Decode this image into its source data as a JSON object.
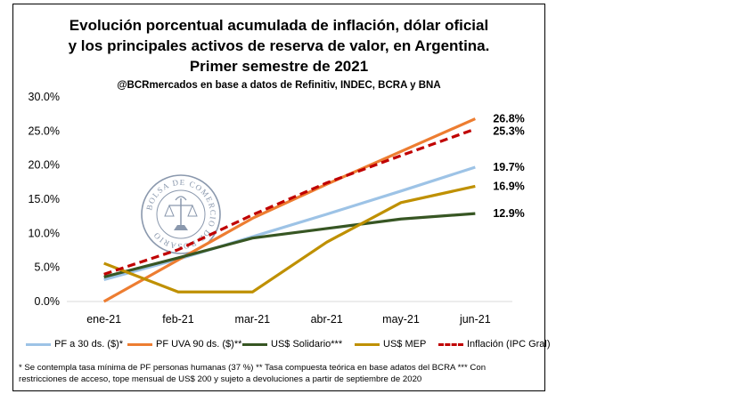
{
  "chart_data": {
    "type": "line",
    "title_lines": [
      "Evolución porcentual acumulada de inflación, dólar oficial",
      "y los principales activos de reserva de valor, en Argentina.",
      "Primer semestre de 2021"
    ],
    "subtitle": "@BCRmercados en base a datos de Refinitiv, INDEC, BCRA y BNA",
    "categories": [
      "ene-21",
      "feb-21",
      "mar-21",
      "abr-21",
      "may-21",
      "jun-21"
    ],
    "y_ticks": [
      "0.0%",
      "5.0%",
      "10.0%",
      "15.0%",
      "20.0%",
      "25.0%",
      "30.0%"
    ],
    "ylim": [
      0,
      30
    ],
    "grid": false,
    "legend_position": "bottom",
    "series": [
      {
        "name": "PF a 30 ds. ($)*",
        "color": "#9dc3e6",
        "dash": false,
        "values": [
          3.2,
          6.2,
          9.5,
          12.8,
          16.2,
          19.7
        ],
        "end_label": "19.7%"
      },
      {
        "name": "PF UVA 90 ds. ($)**",
        "color": "#ed7d31",
        "dash": false,
        "values": [
          0.0,
          6.1,
          12.2,
          17.2,
          22.0,
          26.8
        ],
        "end_label": "26.8%"
      },
      {
        "name": "US$ Solidario***",
        "color": "#375623",
        "dash": false,
        "values": [
          3.6,
          6.4,
          9.3,
          10.7,
          12.1,
          12.9
        ],
        "end_label": "12.9%"
      },
      {
        "name": "US$ MEP",
        "color": "#bf9000",
        "dash": false,
        "values": [
          5.6,
          1.4,
          1.4,
          8.7,
          14.5,
          16.9
        ],
        "end_label": "16.9%"
      },
      {
        "name": "Inflación (IPC Gral)",
        "color": "#c00000",
        "dash": true,
        "values": [
          4.0,
          7.6,
          12.7,
          17.4,
          21.4,
          25.3
        ],
        "end_label": "25.3%"
      }
    ]
  },
  "footnote_lines": [
    "* Se contempla tasa mínima de PF personas humanas (37 %) ** Tasa compuesta teórica en base adatos del BCRA *** Con",
    "restricciones de acceso, tope mensual de US$ 200 y sujeto a devoluciones a partir de septiembre de 2020"
  ],
  "seal": {
    "ring_text": "BOLSA DE COMERCIO DE ROSARIO",
    "color": "#8a98ad"
  }
}
